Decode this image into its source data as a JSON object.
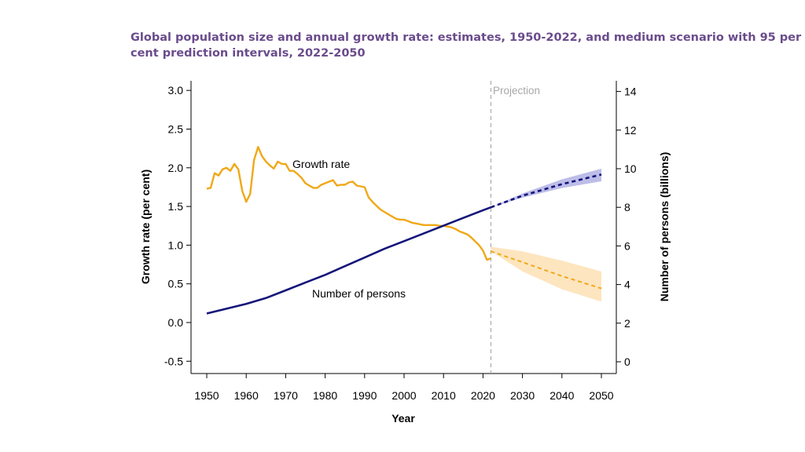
{
  "chart_data": {
    "type": "line",
    "title_lines": [
      "Global population size and annual growth rate: estimates, 1950-2022, and medium scenario with 95 per",
      "cent prediction intervals, 2022-2050"
    ],
    "xlabel": "Year",
    "ylabel_left": "Growth rate (per cent)",
    "ylabel_right": "Number of persons (billions)",
    "xlim": [
      1950,
      2050
    ],
    "ylim_left": [
      -0.5,
      3.0
    ],
    "ylim_right": [
      0,
      14
    ],
    "x_ticks": [
      1950,
      1960,
      1970,
      1980,
      1990,
      2000,
      2010,
      2020,
      2030,
      2040,
      2050
    ],
    "y_ticks_left": [
      "-0.5",
      "0.0",
      "0.5",
      "1.0",
      "1.5",
      "2.0",
      "2.5",
      "3.0"
    ],
    "y_ticks_right": [
      "0",
      "2",
      "4",
      "6",
      "8",
      "10",
      "12",
      "14"
    ],
    "projection_year": 2022,
    "projection_label": "Projection",
    "colors": {
      "growth": "#f0a818",
      "growth_band": "#fde2b8",
      "persons": "#14147a",
      "persons_band": "#b6b6e6",
      "projection_line": "#aaaaaa"
    },
    "series": [
      {
        "name": "Growth rate",
        "axis": "left",
        "annotation": "Growth rate",
        "x": [
          1950,
          1951,
          1952,
          1953,
          1954,
          1955,
          1956,
          1957,
          1958,
          1959,
          1960,
          1961,
          1962,
          1963,
          1964,
          1965,
          1966,
          1967,
          1968,
          1969,
          1970,
          1971,
          1972,
          1973,
          1974,
          1975,
          1976,
          1977,
          1978,
          1979,
          1980,
          1981,
          1982,
          1983,
          1984,
          1985,
          1986,
          1987,
          1988,
          1989,
          1990,
          1991,
          1992,
          1993,
          1994,
          1995,
          1996,
          1997,
          1998,
          1999,
          2000,
          2001,
          2002,
          2003,
          2004,
          2005,
          2006,
          2007,
          2008,
          2009,
          2010,
          2011,
          2012,
          2013,
          2014,
          2015,
          2016,
          2017,
          2018,
          2019,
          2020,
          2021,
          2022
        ],
        "values": [
          1.73,
          1.74,
          1.93,
          1.9,
          1.98,
          2.0,
          1.96,
          2.05,
          1.98,
          1.7,
          1.56,
          1.66,
          2.1,
          2.27,
          2.15,
          2.08,
          2.03,
          1.99,
          2.08,
          2.05,
          2.05,
          1.96,
          1.96,
          1.92,
          1.87,
          1.8,
          1.77,
          1.74,
          1.74,
          1.78,
          1.8,
          1.82,
          1.84,
          1.77,
          1.78,
          1.78,
          1.81,
          1.82,
          1.77,
          1.76,
          1.75,
          1.62,
          1.56,
          1.51,
          1.46,
          1.43,
          1.4,
          1.37,
          1.34,
          1.33,
          1.33,
          1.31,
          1.29,
          1.28,
          1.27,
          1.26,
          1.26,
          1.26,
          1.26,
          1.25,
          1.25,
          1.24,
          1.23,
          1.21,
          1.18,
          1.16,
          1.14,
          1.1,
          1.05,
          1.0,
          0.93,
          0.81,
          0.83
        ]
      },
      {
        "name": "Number of persons",
        "axis": "right",
        "annotation": "Number of persons",
        "x": [
          1950,
          1955,
          1960,
          1965,
          1970,
          1975,
          1980,
          1985,
          1990,
          1995,
          2000,
          2005,
          2010,
          2015,
          2020,
          2022
        ],
        "values": [
          2.5,
          2.75,
          3.0,
          3.3,
          3.7,
          4.1,
          4.5,
          4.95,
          5.4,
          5.85,
          6.25,
          6.65,
          7.05,
          7.45,
          7.85,
          8.0
        ]
      },
      {
        "name": "Growth rate projection (median)",
        "axis": "left",
        "x": [
          2022,
          2030,
          2040,
          2050
        ],
        "values": [
          0.92,
          0.78,
          0.6,
          0.44
        ],
        "band_low": [
          0.92,
          0.66,
          0.43,
          0.27
        ],
        "band_high": [
          0.98,
          0.92,
          0.8,
          0.66
        ]
      },
      {
        "name": "Number of persons projection (median)",
        "axis": "right",
        "x": [
          2022,
          2030,
          2040,
          2050
        ],
        "values": [
          8.0,
          8.6,
          9.2,
          9.7
        ],
        "band_low": [
          8.0,
          8.5,
          9.0,
          9.35
        ],
        "band_high": [
          8.0,
          8.72,
          9.45,
          10.0
        ]
      }
    ]
  }
}
